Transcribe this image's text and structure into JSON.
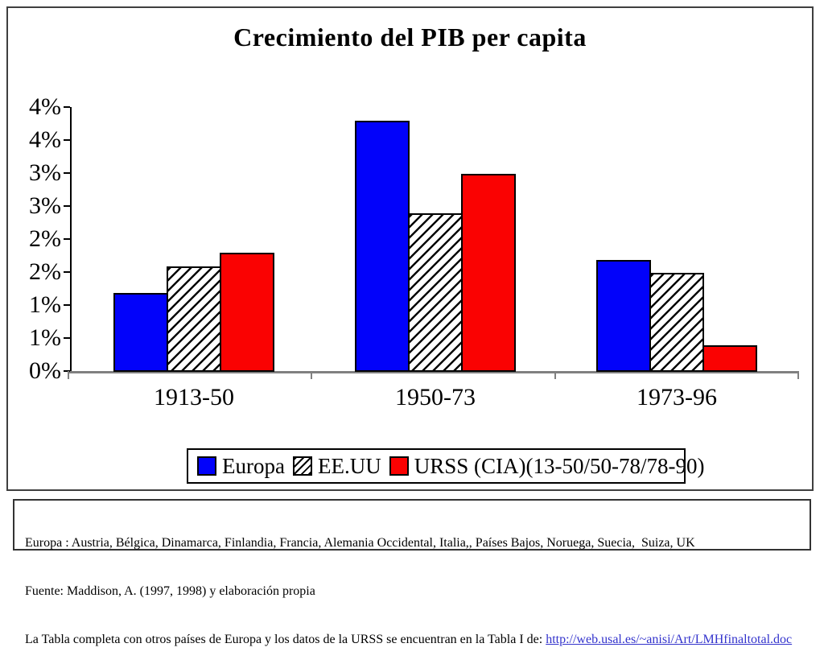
{
  "chart_data": {
    "type": "bar",
    "title": "Crecimiento del PIB per capita",
    "categories": [
      "1913-50",
      "1950-73",
      "1973-96"
    ],
    "series": [
      {
        "name": "Europa",
        "fill": "solid",
        "color": "#0202fa",
        "values": [
          1.2,
          3.8,
          1.7
        ]
      },
      {
        "name": "EE.UU",
        "fill": "diagonal-hatch",
        "color": "#000000",
        "values": [
          1.6,
          2.4,
          1.5
        ]
      },
      {
        "name": "URSS (CIA)(13-50/50-78/78-90)",
        "fill": "solid",
        "color": "#fa0202",
        "values": [
          1.8,
          3.0,
          0.4
        ]
      }
    ],
    "xlabel": "",
    "ylabel": "",
    "ylim": [
      0,
      4
    ],
    "ytick_interval_pct": 0.5,
    "ytick_values_top_to_bottom": [
      4.0,
      3.5,
      3.0,
      2.5,
      2.0,
      1.5,
      1.0,
      0.5,
      0.0
    ],
    "ytick_labels_top_to_bottom": [
      "4%",
      "4%",
      "3%",
      "3%",
      "2%",
      "2%",
      "1%",
      "1%",
      "0%"
    ],
    "grid": false,
    "legend_position": "bottom",
    "axis_color": "#808080",
    "bar_border_color": "#000000"
  },
  "legend": {
    "items": [
      {
        "label": "Europa",
        "swatch": "blue-square"
      },
      {
        "label": "EE.UU",
        "swatch": "hatched-square"
      },
      {
        "label": "URSS (CIA)(13-50/50-78/78-90)",
        "swatch": "red-square"
      }
    ]
  },
  "footnote": {
    "line1": "Europa : Austria, Bélgica, Dinamarca, Finlandia, Francia, Alemania Occidental, Italia,, Países Bajos, Noruega, Suecia,  Suiza, UK",
    "line2": "Fuente: Maddison, A. (1997, 1998) y elaboración propia",
    "line3_prefix": "La Tabla completa con otros países de Europa y los datos de la URSS se encuentran en la Tabla I de: ",
    "link_text": "http://web.usal.es/~anisi/Art/LMHfinaltotal.doc",
    "link_color": "#3333cc"
  }
}
